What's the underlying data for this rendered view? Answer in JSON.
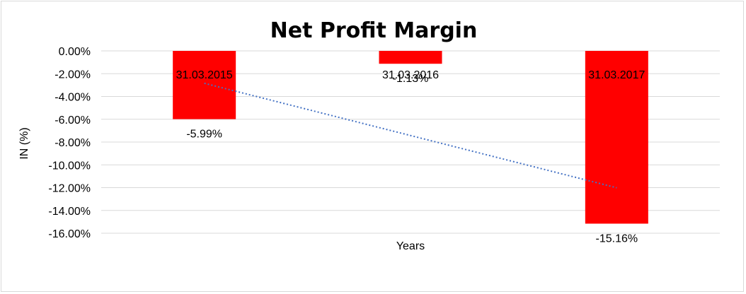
{
  "chart_data": {
    "type": "bar",
    "title": "Net Profit Margin",
    "xlabel": "Years",
    "ylabel": "IN (%)",
    "categories": [
      "31.03.2015",
      "31.03.2016",
      "31.03.2017"
    ],
    "series": [
      {
        "values": [
          -5.99,
          -1.13,
          -15.16
        ],
        "color": "#ff0000"
      }
    ],
    "data_labels": [
      "-5.99%",
      "-1.13%",
      "-15.16%"
    ],
    "ylim": [
      -16,
      0
    ],
    "yticks": [
      0,
      -2,
      -4,
      -6,
      -8,
      -10,
      -12,
      -14,
      -16
    ],
    "ytick_labels": [
      "0.00%",
      "-2.00%",
      "-4.00%",
      "-6.00%",
      "-8.00%",
      "-10.00%",
      "-12.00%",
      "-14.00%",
      "-16.00%"
    ],
    "trendline": {
      "type": "linear",
      "style": "dotted",
      "color": "#4472c4"
    },
    "grid": true,
    "legend": "none"
  }
}
